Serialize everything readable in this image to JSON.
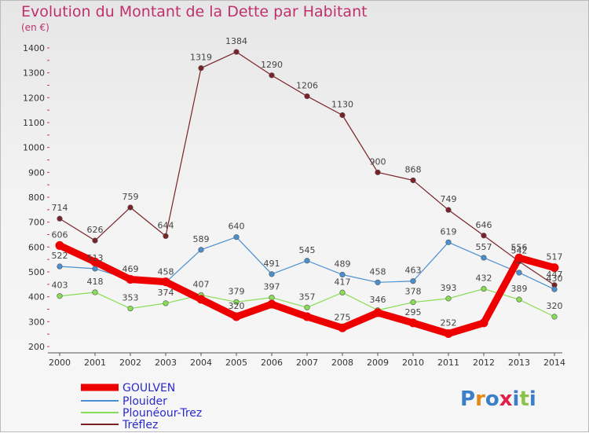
{
  "chart_data": {
    "type": "line",
    "title": "Evolution du Montant de la Dette par Habitant",
    "subtitle": "(en €)",
    "xlabel": "",
    "ylabel": "",
    "ylim": [
      200,
      1400
    ],
    "yticks": [
      200,
      300,
      400,
      500,
      600,
      700,
      800,
      900,
      1000,
      1100,
      1200,
      1300,
      1400
    ],
    "categories": [
      "2000",
      "2001",
      "2002",
      "2003",
      "2004",
      "2005",
      "2006",
      "2007",
      "2008",
      "2009",
      "2010",
      "2011",
      "2012",
      "2013",
      "2014"
    ],
    "grid": false,
    "legend_position": "bottom-left",
    "series": [
      {
        "name": "GOULVEN",
        "color": "#ee0000",
        "values": [
          606,
          540,
          470,
          460,
          390,
          320,
          370,
          320,
          275,
          336,
          295,
          252,
          295,
          556,
          517
        ],
        "labels": [
          "606",
          "",
          "",
          "",
          "",
          "320",
          "",
          "",
          "275",
          "",
          "295",
          "252",
          "",
          "556",
          "517"
        ]
      },
      {
        "name": "Plouider",
        "color": "#4a8fd0",
        "values": [
          522,
          513,
          469,
          458,
          589,
          640,
          491,
          545,
          489,
          458,
          463,
          619,
          557,
          497,
          430
        ],
        "labels": [
          "522",
          "513",
          "469",
          "458",
          "589",
          "640",
          "491",
          "545",
          "489",
          "458",
          "463",
          "619",
          "557",
          "",
          "430"
        ]
      },
      {
        "name": "Plounéour-Trez",
        "color": "#88dd55",
        "values": [
          403,
          418,
          353,
          374,
          407,
          379,
          397,
          357,
          417,
          346,
          378,
          393,
          432,
          389,
          320
        ],
        "labels": [
          "403",
          "418",
          "353",
          "374",
          "407",
          "379",
          "397",
          "357",
          "417",
          "346",
          "378",
          "393",
          "432",
          "389",
          "320"
        ]
      },
      {
        "name": "Tréflez",
        "color": "#7a2228",
        "values": [
          714,
          626,
          759,
          644,
          1319,
          1384,
          1290,
          1206,
          1130,
          900,
          868,
          749,
          646,
          542,
          447
        ],
        "labels": [
          "714",
          "626",
          "759",
          "644",
          "1319",
          "1384",
          "1290",
          "1206",
          "1130",
          "900",
          "868",
          "749",
          "646",
          "542",
          "447"
        ]
      }
    ]
  },
  "brand": {
    "text": "Proxiti"
  }
}
